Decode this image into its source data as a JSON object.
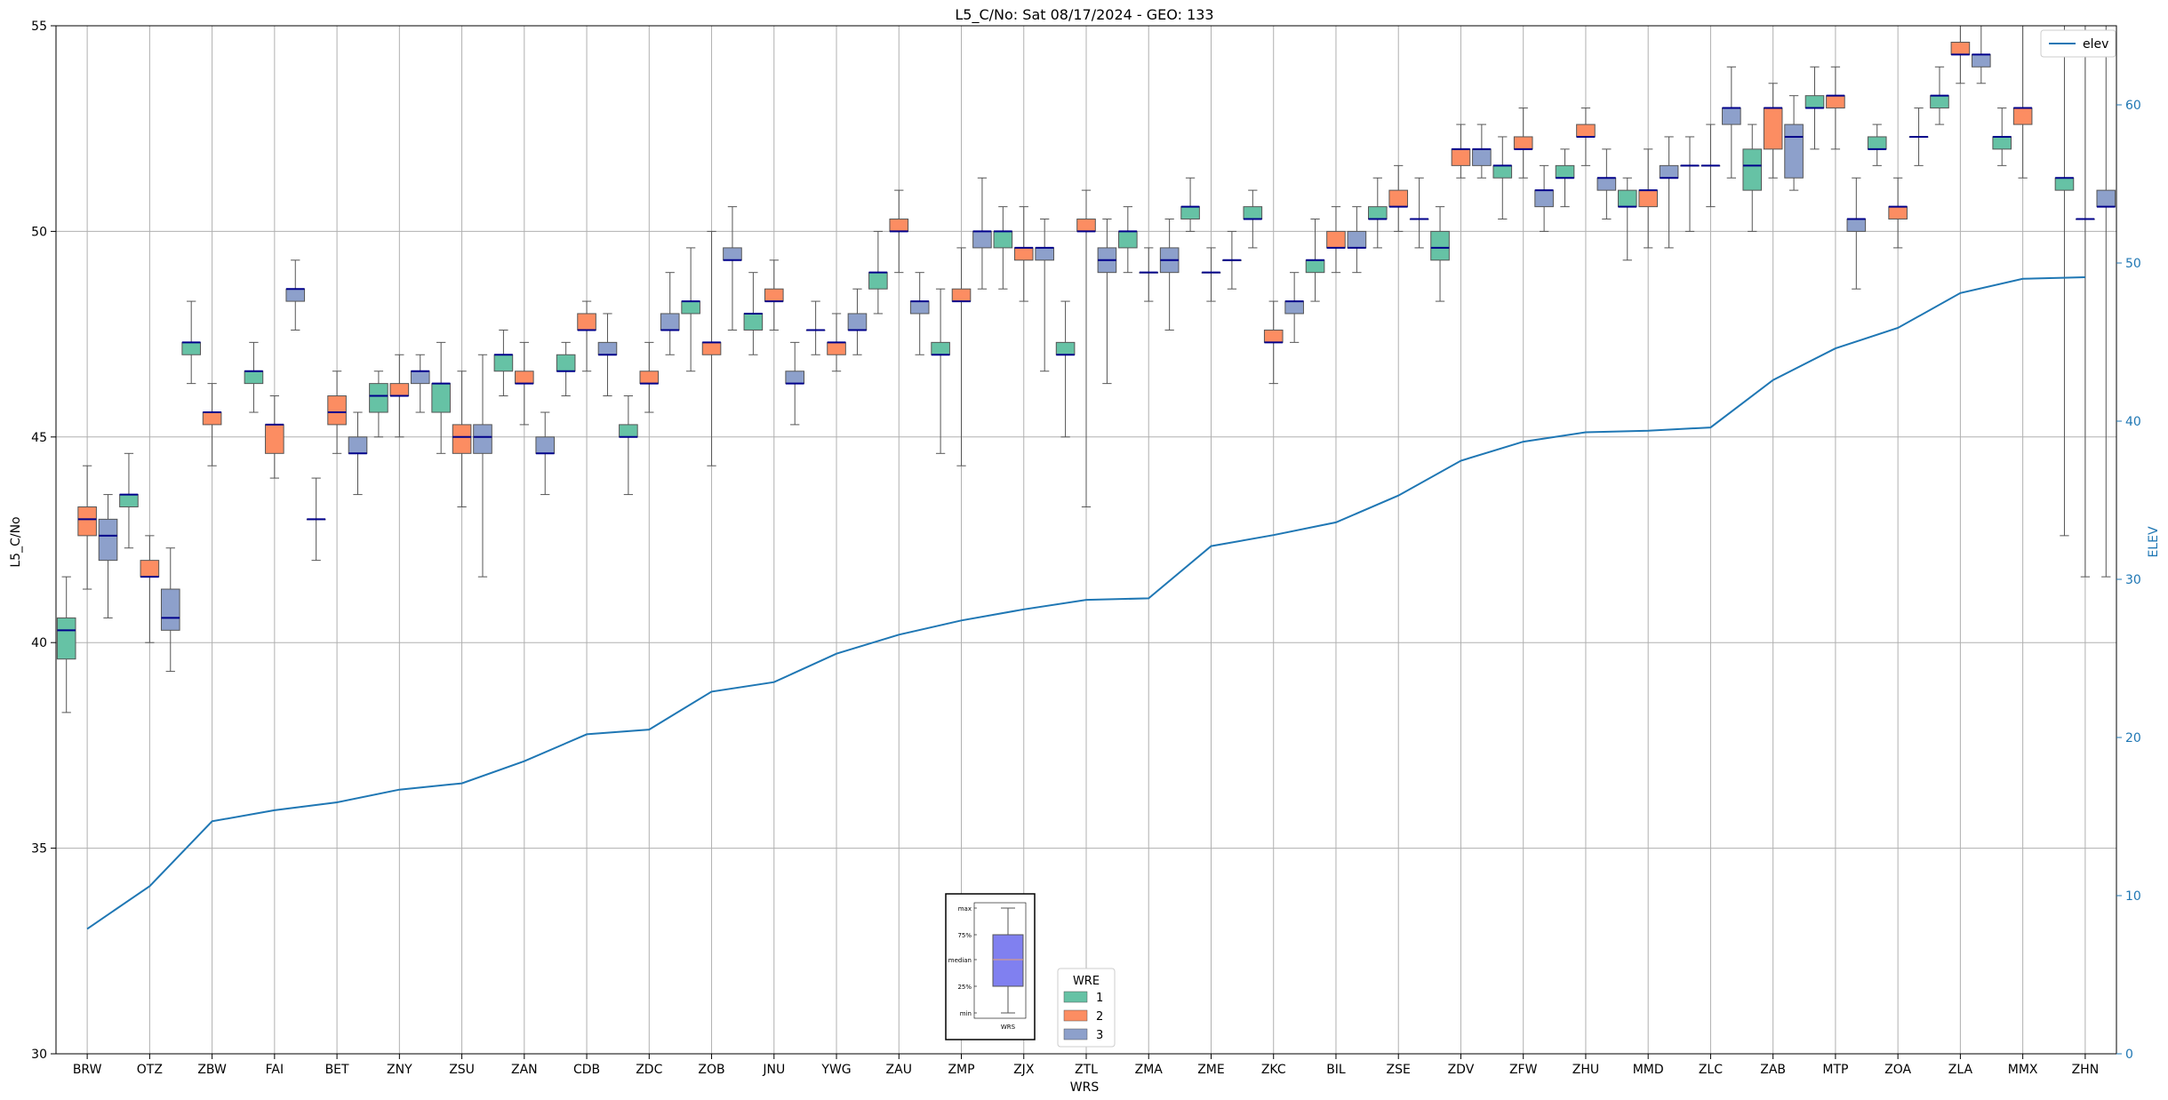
{
  "chart_data": {
    "type": "box",
    "title": "L5_C/No: Sat 08/17/2024 - GEO: 133",
    "xlabel": "WRS",
    "ylabel": "L5_C/No",
    "y2label": "ELEV",
    "ylim": [
      30,
      55
    ],
    "y2lim": [
      0,
      65
    ],
    "yticks": [
      30,
      35,
      40,
      45,
      50,
      55
    ],
    "y2ticks": [
      0,
      10,
      20,
      30,
      40,
      50,
      60
    ],
    "grid": true,
    "categories": [
      "BRW",
      "OTZ",
      "ZBW",
      "FAI",
      "BET",
      "ZNY",
      "ZSU",
      "ZAN",
      "CDB",
      "ZDC",
      "ZOB",
      "JNU",
      "YWG",
      "ZAU",
      "ZMP",
      "ZJX",
      "ZTL",
      "ZMA",
      "ZME",
      "ZKC",
      "BIL",
      "ZSE",
      "ZDV",
      "ZFW",
      "ZHU",
      "MMD",
      "ZLC",
      "ZAB",
      "MTP",
      "ZOA",
      "ZLA",
      "MMX",
      "ZHN"
    ],
    "line_legend": "elev",
    "box_legend_title": "WRE",
    "groups": [
      {
        "name": "1",
        "color": "#66c2a5"
      },
      {
        "name": "2",
        "color": "#fc8d62"
      },
      {
        "name": "3",
        "color": "#8da0cb"
      }
    ],
    "elev": [
      7.9,
      10.6,
      14.7,
      15.4,
      15.9,
      16.7,
      17.1,
      18.5,
      20.2,
      20.5,
      22.9,
      23.5,
      25.3,
      26.5,
      27.4,
      28.1,
      28.7,
      28.8,
      32.1,
      32.8,
      33.6,
      35.3,
      37.5,
      38.7,
      39.3,
      39.4,
      39.6,
      42.6,
      44.6,
      45.9,
      48.1,
      49.0,
      49.1
    ],
    "boxes": [
      {
        "wrs": "BRW",
        "wre": 1,
        "min": 38.3,
        "q1": 39.6,
        "med": 40.3,
        "q3": 40.6,
        "max": 41.6
      },
      {
        "wrs": "BRW",
        "wre": 2,
        "min": 41.3,
        "q1": 42.6,
        "med": 43.0,
        "q3": 43.3,
        "max": 44.3
      },
      {
        "wrs": "BRW",
        "wre": 3,
        "min": 40.6,
        "q1": 42.0,
        "med": 42.6,
        "q3": 43.0,
        "max": 43.6
      },
      {
        "wrs": "OTZ",
        "wre": 1,
        "min": 42.3,
        "q1": 43.3,
        "med": 43.6,
        "q3": 43.6,
        "max": 44.6
      },
      {
        "wrs": "OTZ",
        "wre": 2,
        "min": 40.0,
        "q1": 41.6,
        "med": 41.6,
        "q3": 42.0,
        "max": 42.6
      },
      {
        "wrs": "OTZ",
        "wre": 3,
        "min": 39.3,
        "q1": 40.3,
        "med": 40.6,
        "q3": 41.3,
        "max": 42.3
      },
      {
        "wrs": "ZBW",
        "wre": 1,
        "min": 46.3,
        "q1": 47.0,
        "med": 47.3,
        "q3": 47.3,
        "max": 48.3
      },
      {
        "wrs": "ZBW",
        "wre": 2,
        "min": 44.3,
        "q1": 45.3,
        "med": 45.6,
        "q3": 45.6,
        "max": 46.3
      },
      {
        "wrs": "FAI",
        "wre": 1,
        "min": 45.6,
        "q1": 46.3,
        "med": 46.6,
        "q3": 46.6,
        "max": 47.3
      },
      {
        "wrs": "FAI",
        "wre": 2,
        "min": 44.0,
        "q1": 44.6,
        "med": 45.3,
        "q3": 45.3,
        "max": 46.0
      },
      {
        "wrs": "FAI",
        "wre": 3,
        "min": 47.6,
        "q1": 48.3,
        "med": 48.6,
        "q3": 48.6,
        "max": 49.3
      },
      {
        "wrs": "BET",
        "wre": 1,
        "min": 42.0,
        "q1": 43.0,
        "med": 43.0,
        "q3": 43.0,
        "max": 44.0
      },
      {
        "wrs": "BET",
        "wre": 2,
        "min": 44.6,
        "q1": 45.3,
        "med": 45.6,
        "q3": 46.0,
        "max": 46.6
      },
      {
        "wrs": "BET",
        "wre": 3,
        "min": 43.6,
        "q1": 44.6,
        "med": 44.6,
        "q3": 45.0,
        "max": 45.6
      },
      {
        "wrs": "ZNY",
        "wre": 1,
        "min": 45.0,
        "q1": 45.6,
        "med": 46.0,
        "q3": 46.3,
        "max": 46.6
      },
      {
        "wrs": "ZNY",
        "wre": 2,
        "min": 45.0,
        "q1": 46.0,
        "med": 46.0,
        "q3": 46.3,
        "max": 47.0
      },
      {
        "wrs": "ZNY",
        "wre": 3,
        "min": 45.6,
        "q1": 46.3,
        "med": 46.6,
        "q3": 46.6,
        "max": 47.0
      },
      {
        "wrs": "ZSU",
        "wre": 1,
        "min": 44.6,
        "q1": 45.6,
        "med": 46.3,
        "q3": 46.3,
        "max": 47.3
      },
      {
        "wrs": "ZSU",
        "wre": 2,
        "min": 43.3,
        "q1": 44.6,
        "med": 45.0,
        "q3": 45.3,
        "max": 46.6
      },
      {
        "wrs": "ZSU",
        "wre": 3,
        "min": 41.6,
        "q1": 44.6,
        "med": 45.0,
        "q3": 45.3,
        "max": 47.0
      },
      {
        "wrs": "ZAN",
        "wre": 1,
        "min": 46.0,
        "q1": 46.6,
        "med": 47.0,
        "q3": 47.0,
        "max": 47.6
      },
      {
        "wrs": "ZAN",
        "wre": 2,
        "min": 45.3,
        "q1": 46.3,
        "med": 46.3,
        "q3": 46.6,
        "max": 47.3
      },
      {
        "wrs": "ZAN",
        "wre": 3,
        "min": 43.6,
        "q1": 44.6,
        "med": 44.6,
        "q3": 45.0,
        "max": 45.6
      },
      {
        "wrs": "CDB",
        "wre": 1,
        "min": 46.0,
        "q1": 46.6,
        "med": 46.6,
        "q3": 47.0,
        "max": 47.3
      },
      {
        "wrs": "CDB",
        "wre": 2,
        "min": 46.6,
        "q1": 47.6,
        "med": 47.6,
        "q3": 48.0,
        "max": 48.3
      },
      {
        "wrs": "CDB",
        "wre": 3,
        "min": 46.0,
        "q1": 47.0,
        "med": 47.0,
        "q3": 47.3,
        "max": 48.0
      },
      {
        "wrs": "ZDC",
        "wre": 1,
        "min": 43.6,
        "q1": 45.0,
        "med": 45.0,
        "q3": 45.3,
        "max": 46.0
      },
      {
        "wrs": "ZDC",
        "wre": 2,
        "min": 45.6,
        "q1": 46.3,
        "med": 46.3,
        "q3": 46.6,
        "max": 47.3
      },
      {
        "wrs": "ZDC",
        "wre": 3,
        "min": 47.0,
        "q1": 47.6,
        "med": 47.6,
        "q3": 48.0,
        "max": 49.0
      },
      {
        "wrs": "ZOB",
        "wre": 1,
        "min": 46.6,
        "q1": 48.0,
        "med": 48.3,
        "q3": 48.3,
        "max": 49.6
      },
      {
        "wrs": "ZOB",
        "wre": 2,
        "min": 44.3,
        "q1": 47.0,
        "med": 47.3,
        "q3": 47.3,
        "max": 50.0
      },
      {
        "wrs": "ZOB",
        "wre": 3,
        "min": 47.6,
        "q1": 49.3,
        "med": 49.3,
        "q3": 49.6,
        "max": 50.6
      },
      {
        "wrs": "JNU",
        "wre": 1,
        "min": 47.0,
        "q1": 47.6,
        "med": 48.0,
        "q3": 48.0,
        "max": 49.0
      },
      {
        "wrs": "JNU",
        "wre": 2,
        "min": 47.6,
        "q1": 48.3,
        "med": 48.3,
        "q3": 48.6,
        "max": 49.3
      },
      {
        "wrs": "JNU",
        "wre": 3,
        "min": 45.3,
        "q1": 46.3,
        "med": 46.3,
        "q3": 46.6,
        "max": 47.3
      },
      {
        "wrs": "YWG",
        "wre": 1,
        "min": 47.0,
        "q1": 47.6,
        "med": 47.6,
        "q3": 47.6,
        "max": 48.3
      },
      {
        "wrs": "YWG",
        "wre": 2,
        "min": 46.6,
        "q1": 47.0,
        "med": 47.3,
        "q3": 47.3,
        "max": 48.0
      },
      {
        "wrs": "YWG",
        "wre": 3,
        "min": 47.0,
        "q1": 47.6,
        "med": 47.6,
        "q3": 48.0,
        "max": 48.6
      },
      {
        "wrs": "ZAU",
        "wre": 1,
        "min": 48.0,
        "q1": 48.6,
        "med": 49.0,
        "q3": 49.0,
        "max": 50.0
      },
      {
        "wrs": "ZAU",
        "wre": 2,
        "min": 49.0,
        "q1": 50.0,
        "med": 50.0,
        "q3": 50.3,
        "max": 51.0
      },
      {
        "wrs": "ZAU",
        "wre": 3,
        "min": 47.0,
        "q1": 48.0,
        "med": 48.3,
        "q3": 48.3,
        "max": 49.0
      },
      {
        "wrs": "ZMP",
        "wre": 1,
        "min": 44.6,
        "q1": 47.0,
        "med": 47.0,
        "q3": 47.3,
        "max": 48.6
      },
      {
        "wrs": "ZMP",
        "wre": 2,
        "min": 44.3,
        "q1": 48.3,
        "med": 48.3,
        "q3": 48.6,
        "max": 49.6
      },
      {
        "wrs": "ZMP",
        "wre": 3,
        "min": 48.6,
        "q1": 49.6,
        "med": 50.0,
        "q3": 50.0,
        "max": 51.3
      },
      {
        "wrs": "ZJX",
        "wre": 1,
        "min": 48.6,
        "q1": 49.6,
        "med": 50.0,
        "q3": 50.0,
        "max": 50.6
      },
      {
        "wrs": "ZJX",
        "wre": 2,
        "min": 48.3,
        "q1": 49.3,
        "med": 49.6,
        "q3": 49.6,
        "max": 50.6
      },
      {
        "wrs": "ZJX",
        "wre": 3,
        "min": 46.6,
        "q1": 49.3,
        "med": 49.6,
        "q3": 49.6,
        "max": 50.3
      },
      {
        "wrs": "ZTL",
        "wre": 1,
        "min": 45.0,
        "q1": 47.0,
        "med": 47.0,
        "q3": 47.3,
        "max": 48.3
      },
      {
        "wrs": "ZTL",
        "wre": 2,
        "min": 43.3,
        "q1": 50.0,
        "med": 50.0,
        "q3": 50.3,
        "max": 51.0
      },
      {
        "wrs": "ZTL",
        "wre": 3,
        "min": 46.3,
        "q1": 49.0,
        "med": 49.3,
        "q3": 49.6,
        "max": 50.3
      },
      {
        "wrs": "ZMA",
        "wre": 1,
        "min": 49.0,
        "q1": 49.6,
        "med": 50.0,
        "q3": 50.0,
        "max": 50.6
      },
      {
        "wrs": "ZMA",
        "wre": 2,
        "min": 48.3,
        "q1": 49.0,
        "med": 49.0,
        "q3": 49.0,
        "max": 49.6
      },
      {
        "wrs": "ZMA",
        "wre": 3,
        "min": 47.6,
        "q1": 49.0,
        "med": 49.3,
        "q3": 49.6,
        "max": 50.3
      },
      {
        "wrs": "ZME",
        "wre": 1,
        "min": 50.0,
        "q1": 50.3,
        "med": 50.6,
        "q3": 50.6,
        "max": 51.3
      },
      {
        "wrs": "ZME",
        "wre": 2,
        "min": 48.3,
        "q1": 49.0,
        "med": 49.0,
        "q3": 49.0,
        "max": 49.6
      },
      {
        "wrs": "ZME",
        "wre": 3,
        "min": 48.6,
        "q1": 49.3,
        "med": 49.3,
        "q3": 49.3,
        "max": 50.0
      },
      {
        "wrs": "ZKC",
        "wre": 1,
        "min": 49.6,
        "q1": 50.3,
        "med": 50.3,
        "q3": 50.6,
        "max": 51.0
      },
      {
        "wrs": "ZKC",
        "wre": 2,
        "min": 46.3,
        "q1": 47.3,
        "med": 47.3,
        "q3": 47.6,
        "max": 48.3
      },
      {
        "wrs": "ZKC",
        "wre": 3,
        "min": 47.3,
        "q1": 48.0,
        "med": 48.3,
        "q3": 48.3,
        "max": 49.0
      },
      {
        "wrs": "BIL",
        "wre": 1,
        "min": 48.3,
        "q1": 49.0,
        "med": 49.3,
        "q3": 49.3,
        "max": 50.3
      },
      {
        "wrs": "BIL",
        "wre": 2,
        "min": 49.0,
        "q1": 49.6,
        "med": 49.6,
        "q3": 50.0,
        "max": 50.6
      },
      {
        "wrs": "BIL",
        "wre": 3,
        "min": 49.0,
        "q1": 49.6,
        "med": 49.6,
        "q3": 50.0,
        "max": 50.6
      },
      {
        "wrs": "ZSE",
        "wre": 1,
        "min": 49.6,
        "q1": 50.3,
        "med": 50.3,
        "q3": 50.6,
        "max": 51.3
      },
      {
        "wrs": "ZSE",
        "wre": 2,
        "min": 50.0,
        "q1": 50.6,
        "med": 50.6,
        "q3": 51.0,
        "max": 51.6
      },
      {
        "wrs": "ZSE",
        "wre": 3,
        "min": 49.6,
        "q1": 50.3,
        "med": 50.3,
        "q3": 50.3,
        "max": 51.3
      },
      {
        "wrs": "ZDV",
        "wre": 1,
        "min": 48.3,
        "q1": 49.3,
        "med": 49.6,
        "q3": 50.0,
        "max": 50.6
      },
      {
        "wrs": "ZDV",
        "wre": 2,
        "min": 51.3,
        "q1": 51.6,
        "med": 52.0,
        "q3": 52.0,
        "max": 52.6
      },
      {
        "wrs": "ZDV",
        "wre": 3,
        "min": 51.3,
        "q1": 51.6,
        "med": 52.0,
        "q3": 52.0,
        "max": 52.6
      },
      {
        "wrs": "ZFW",
        "wre": 1,
        "min": 50.3,
        "q1": 51.3,
        "med": 51.6,
        "q3": 51.6,
        "max": 52.3
      },
      {
        "wrs": "ZFW",
        "wre": 2,
        "min": 51.3,
        "q1": 52.0,
        "med": 52.0,
        "q3": 52.3,
        "max": 53.0
      },
      {
        "wrs": "ZFW",
        "wre": 3,
        "min": 50.0,
        "q1": 50.6,
        "med": 51.0,
        "q3": 51.0,
        "max": 51.6
      },
      {
        "wrs": "ZHU",
        "wre": 1,
        "min": 50.6,
        "q1": 51.3,
        "med": 51.3,
        "q3": 51.6,
        "max": 52.0
      },
      {
        "wrs": "ZHU",
        "wre": 2,
        "min": 51.6,
        "q1": 52.3,
        "med": 52.3,
        "q3": 52.6,
        "max": 53.0
      },
      {
        "wrs": "ZHU",
        "wre": 3,
        "min": 50.3,
        "q1": 51.0,
        "med": 51.3,
        "q3": 51.3,
        "max": 52.0
      },
      {
        "wrs": "MMD",
        "wre": 1,
        "min": 49.3,
        "q1": 50.6,
        "med": 50.6,
        "q3": 51.0,
        "max": 51.3
      },
      {
        "wrs": "MMD",
        "wre": 2,
        "min": 49.6,
        "q1": 50.6,
        "med": 51.0,
        "q3": 51.0,
        "max": 52.0
      },
      {
        "wrs": "MMD",
        "wre": 3,
        "min": 49.6,
        "q1": 51.3,
        "med": 51.3,
        "q3": 51.6,
        "max": 52.3
      },
      {
        "wrs": "ZLC",
        "wre": 1,
        "min": 50.0,
        "q1": 51.6,
        "med": 51.6,
        "q3": 51.6,
        "max": 52.3
      },
      {
        "wrs": "ZLC",
        "wre": 2,
        "min": 50.6,
        "q1": 51.6,
        "med": 51.6,
        "q3": 51.6,
        "max": 52.6
      },
      {
        "wrs": "ZLC",
        "wre": 3,
        "min": 51.3,
        "q1": 52.6,
        "med": 53.0,
        "q3": 53.0,
        "max": 54.0
      },
      {
        "wrs": "ZAB",
        "wre": 1,
        "min": 50.0,
        "q1": 51.0,
        "med": 51.6,
        "q3": 52.0,
        "max": 52.6
      },
      {
        "wrs": "ZAB",
        "wre": 2,
        "min": 51.3,
        "q1": 52.0,
        "med": 53.0,
        "q3": 53.0,
        "max": 53.6
      },
      {
        "wrs": "ZAB",
        "wre": 3,
        "min": 51.0,
        "q1": 51.3,
        "med": 52.3,
        "q3": 52.6,
        "max": 53.3
      },
      {
        "wrs": "MTP",
        "wre": 1,
        "min": 52.0,
        "q1": 53.0,
        "med": 53.0,
        "q3": 53.3,
        "max": 54.0
      },
      {
        "wrs": "MTP",
        "wre": 2,
        "min": 52.0,
        "q1": 53.0,
        "med": 53.3,
        "q3": 53.3,
        "max": 54.0
      },
      {
        "wrs": "MTP",
        "wre": 3,
        "min": 48.6,
        "q1": 50.0,
        "med": 50.3,
        "q3": 50.3,
        "max": 51.3
      },
      {
        "wrs": "ZOA",
        "wre": 1,
        "min": 51.6,
        "q1": 52.0,
        "med": 52.0,
        "q3": 52.3,
        "max": 52.6
      },
      {
        "wrs": "ZOA",
        "wre": 2,
        "min": 49.6,
        "q1": 50.3,
        "med": 50.6,
        "q3": 50.6,
        "max": 51.3
      },
      {
        "wrs": "ZOA",
        "wre": 3,
        "min": 51.6,
        "q1": 52.3,
        "med": 52.3,
        "q3": 52.3,
        "max": 53.0
      },
      {
        "wrs": "ZLA",
        "wre": 1,
        "min": 52.6,
        "q1": 53.0,
        "med": 53.3,
        "q3": 53.3,
        "max": 54.0
      },
      {
        "wrs": "ZLA",
        "wre": 2,
        "min": 53.6,
        "q1": 54.3,
        "med": 54.3,
        "q3": 54.6,
        "max": 55.0
      },
      {
        "wrs": "ZLA",
        "wre": 3,
        "min": 53.6,
        "q1": 54.0,
        "med": 54.3,
        "q3": 54.3,
        "max": 55.0
      },
      {
        "wrs": "MMX",
        "wre": 1,
        "min": 51.6,
        "q1": 52.0,
        "med": 52.3,
        "q3": 52.3,
        "max": 53.0
      },
      {
        "wrs": "MMX",
        "wre": 2,
        "min": 51.3,
        "q1": 52.6,
        "med": 53.0,
        "q3": 53.0,
        "max": 55.0
      },
      {
        "wrs": "ZHN",
        "wre": 1,
        "min": 42.6,
        "q1": 51.0,
        "med": 51.3,
        "q3": 51.3,
        "max": 55.0
      },
      {
        "wrs": "ZHN",
        "wre": 2,
        "min": 41.6,
        "q1": 50.3,
        "med": 50.3,
        "q3": 50.3,
        "max": 55.0
      },
      {
        "wrs": "ZHN",
        "wre": 3,
        "min": 41.6,
        "q1": 50.6,
        "med": 50.6,
        "q3": 51.0,
        "max": 55.0
      }
    ],
    "inset_legend": {
      "labels": [
        "max",
        "75%",
        "median",
        "25%",
        "min"
      ],
      "xlabel": "WRS",
      "color": "#8080f0"
    }
  }
}
